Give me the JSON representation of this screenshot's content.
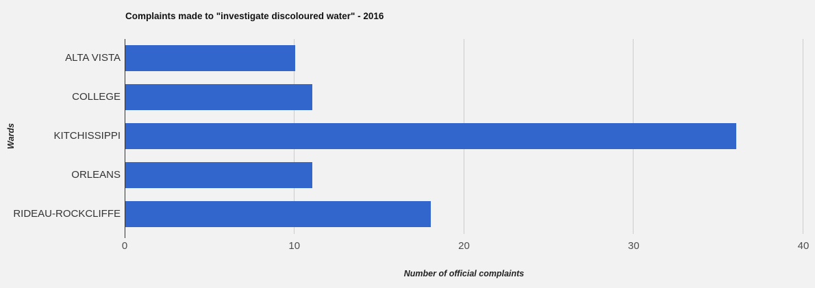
{
  "chart_data": {
    "type": "bar",
    "orientation": "horizontal",
    "title": "Complaints made to \"investigate discoloured water\" - 2016",
    "categories": [
      "ALTA VISTA",
      "COLLEGE",
      "KITCHISSIPPI",
      "ORLEANS",
      "RIDEAU-ROCKCLIFFE"
    ],
    "values": [
      10,
      11,
      36,
      11,
      18
    ],
    "xlabel": "Number of official complaints",
    "ylabel": "Wards",
    "xlim": [
      0,
      40
    ],
    "xticks": [
      0,
      10,
      20,
      30,
      40
    ],
    "grid": true,
    "legend_position": "none"
  },
  "colors": {
    "background": "#f2f2f2",
    "bar": "#3366cc",
    "gridline": "#cccccc",
    "axis_line": "#333333",
    "title": "#111111",
    "axis_title": "#222222",
    "category_label": "#333333",
    "tick_label": "#4d4d4d"
  }
}
